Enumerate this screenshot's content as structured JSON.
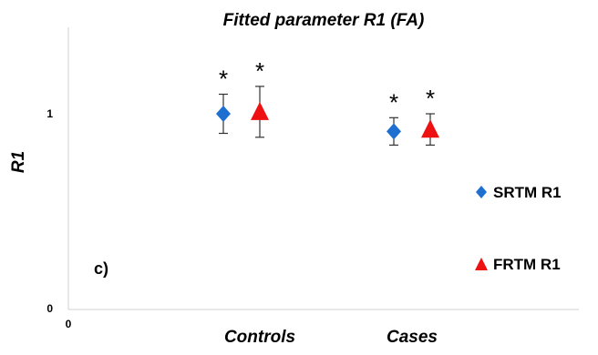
{
  "chart_data": {
    "type": "scatter",
    "title": "Fitted parameter R1 (FA)",
    "ylabel": "R1",
    "xlabel": "",
    "panel_label": "c)",
    "x_tick": "0",
    "y_ticks": [
      "0",
      "1"
    ],
    "ylim": [
      0,
      1.47
    ],
    "categories": [
      "Controls",
      "Cases"
    ],
    "grid": false,
    "legend_position": "right",
    "series": [
      {
        "name": "SRTM R1",
        "marker": "diamond",
        "color": "#1f6fd1",
        "values": [
          1.0,
          0.91
        ],
        "error": [
          0.1,
          0.07
        ],
        "significance": [
          "*",
          "*"
        ]
      },
      {
        "name": "FRTM R1",
        "marker": "triangle",
        "color": "#ee1111",
        "values": [
          1.01,
          0.92
        ],
        "error": [
          0.13,
          0.08
        ],
        "significance": [
          "*",
          "*"
        ]
      }
    ]
  }
}
